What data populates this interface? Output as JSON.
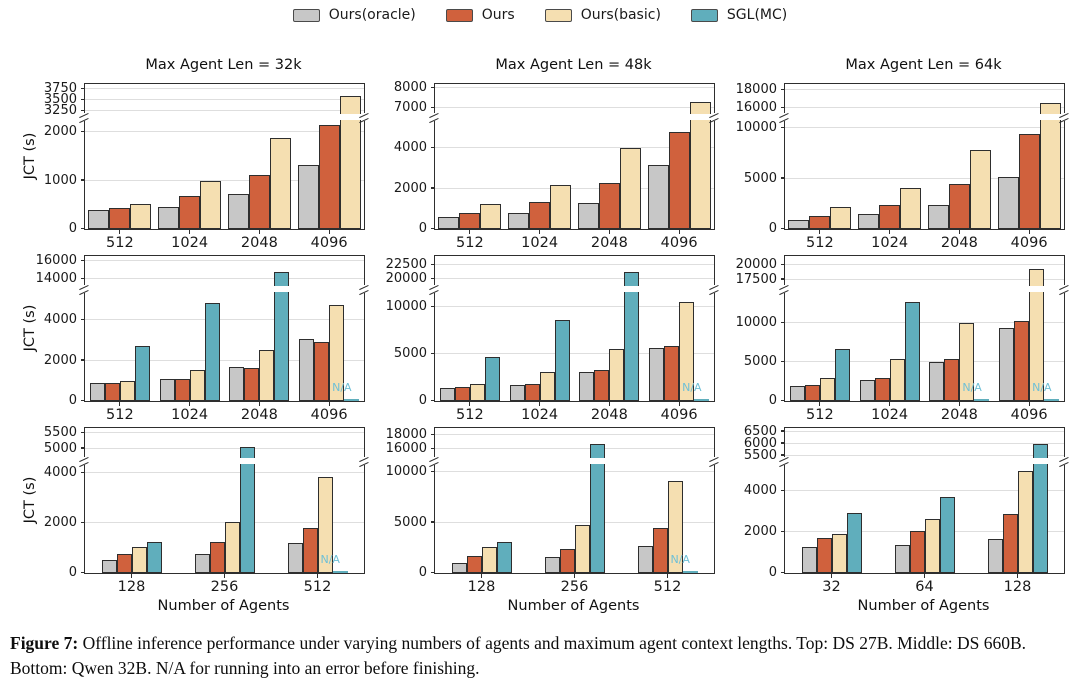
{
  "legend": {
    "items": [
      {
        "name": "Ours(oracle)",
        "color": "#c7c7c7"
      },
      {
        "name": "Ours",
        "color": "#d0613d"
      },
      {
        "name": "Ours(basic)",
        "color": "#f5dfb1"
      },
      {
        "name": "SGL(MC)",
        "color": "#60aebc"
      }
    ]
  },
  "axis": {
    "ylabel": "JCT (s)",
    "xlabel": "Number of Agents"
  },
  "na_label": "N/A",
  "colors": {
    "edge": "#2e2e2e",
    "grid": "#dedede",
    "na_text": "#6fc0d6"
  },
  "caption": {
    "label": "Figure 7:",
    "text": " Offline inference performance under varying numbers of agents and maximum agent context lengths. Top: DS 27B. Middle: DS 660B. Bottom: Qwen 32B. N/A for running into an error before finishing."
  },
  "chart_data": [
    {
      "type": "bar",
      "row": 0,
      "col": 0,
      "title": "Max Agent Len = 32k",
      "categories": [
        "512",
        "1024",
        "2048",
        "4096"
      ],
      "series": [
        {
          "name": "Ours(oracle)",
          "values": [
            390,
            460,
            730,
            1320
          ]
        },
        {
          "name": "Ours",
          "values": [
            430,
            680,
            1120,
            2150
          ]
        },
        {
          "name": "Ours(basic)",
          "values": [
            520,
            1000,
            1880,
            3600
          ]
        }
      ],
      "lower_ticks": [
        0,
        1000,
        2000
      ],
      "lower_max": 2250,
      "upper_ticks": [
        3250,
        3500,
        3750
      ],
      "upper_range": [
        3175,
        3875
      ]
    },
    {
      "type": "bar",
      "row": 0,
      "col": 1,
      "title": "Max Agent Len = 48k",
      "categories": [
        "512",
        "1024",
        "2048",
        "4096"
      ],
      "series": [
        {
          "name": "Ours(oracle)",
          "values": [
            620,
            780,
            1270,
            3170
          ]
        },
        {
          "name": "Ours",
          "values": [
            780,
            1350,
            2280,
            4830
          ]
        },
        {
          "name": "Ours(basic)",
          "values": [
            1230,
            2180,
            4030,
            7300
          ]
        }
      ],
      "lower_ticks": [
        0,
        2000,
        4000
      ],
      "lower_max": 5400,
      "upper_ticks": [
        7000,
        8000
      ],
      "upper_range": [
        6700,
        8200
      ]
    },
    {
      "type": "bar",
      "row": 0,
      "col": 2,
      "title": "Max Agent Len = 64k",
      "categories": [
        "512",
        "1024",
        "2048",
        "4096"
      ],
      "series": [
        {
          "name": "Ours(oracle)",
          "values": [
            900,
            1500,
            2400,
            5200
          ]
        },
        {
          "name": "Ours",
          "values": [
            1300,
            2400,
            4500,
            9400
          ]
        },
        {
          "name": "Ours(basic)",
          "values": [
            2200,
            4100,
            7800,
            16500
          ]
        }
      ],
      "lower_ticks": [
        0,
        5000,
        10000
      ],
      "lower_max": 10800,
      "upper_ticks": [
        16000,
        18000
      ],
      "upper_range": [
        15300,
        18700
      ]
    },
    {
      "type": "bar",
      "row": 1,
      "col": 0,
      "title": "",
      "categories": [
        "512",
        "1024",
        "2048",
        "4096"
      ],
      "series": [
        {
          "name": "Ours(oracle)",
          "values": [
            880,
            1100,
            1700,
            3050
          ]
        },
        {
          "name": "Ours",
          "values": [
            870,
            1080,
            1650,
            2900
          ]
        },
        {
          "name": "Ours(basic)",
          "values": [
            980,
            1520,
            2550,
            4750
          ]
        },
        {
          "name": "SGL(MC)",
          "values": [
            2750,
            4850,
            14800,
            "N/A"
          ]
        }
      ],
      "lower_ticks": [
        0,
        2000,
        4000
      ],
      "lower_max": 5400,
      "upper_ticks": [
        14000,
        16000
      ],
      "upper_range": [
        13300,
        16500
      ]
    },
    {
      "type": "bar",
      "row": 1,
      "col": 1,
      "title": "",
      "categories": [
        "512",
        "1024",
        "2048",
        "4096"
      ],
      "series": [
        {
          "name": "Ours(oracle)",
          "values": [
            1400,
            1750,
            3100,
            5600
          ]
        },
        {
          "name": "Ours",
          "values": [
            1450,
            1850,
            3250,
            5900
          ]
        },
        {
          "name": "Ours(basic)",
          "values": [
            1800,
            3100,
            5500,
            10500
          ]
        },
        {
          "name": "SGL(MC)",
          "values": [
            4700,
            8600,
            21300,
            "N/A"
          ]
        }
      ],
      "lower_ticks": [
        0,
        5000,
        10000
      ],
      "lower_max": 11600,
      "upper_ticks": [
        20000,
        22500
      ],
      "upper_range": [
        18800,
        24200
      ]
    },
    {
      "type": "bar",
      "row": 1,
      "col": 2,
      "title": "",
      "categories": [
        "512",
        "1024",
        "2048",
        "4096"
      ],
      "series": [
        {
          "name": "Ours(oracle)",
          "values": [
            1900,
            2650,
            4950,
            9400
          ]
        },
        {
          "name": "Ours",
          "values": [
            2050,
            2950,
            5400,
            10300
          ]
        },
        {
          "name": "Ours(basic)",
          "values": [
            2900,
            5350,
            10050,
            19300
          ]
        },
        {
          "name": "SGL(MC)",
          "values": [
            6700,
            12700,
            "N/A",
            "N/A"
          ]
        }
      ],
      "lower_ticks": [
        0,
        5000,
        10000
      ],
      "lower_max": 14000,
      "upper_ticks": [
        17500,
        20000
      ],
      "upper_range": [
        16400,
        21500
      ]
    },
    {
      "type": "bar",
      "row": 2,
      "col": 0,
      "title": "",
      "categories": [
        "128",
        "256",
        "512"
      ],
      "series": [
        {
          "name": "Ours(oracle)",
          "values": [
            520,
            760,
            1180
          ]
        },
        {
          "name": "Ours",
          "values": [
            740,
            1230,
            1800
          ]
        },
        {
          "name": "Ours(basic)",
          "values": [
            1020,
            2030,
            3820
          ]
        },
        {
          "name": "SGL(MC)",
          "values": [
            1230,
            5050,
            "N/A"
          ]
        }
      ],
      "lower_ticks": [
        0,
        2000,
        4000
      ],
      "lower_max": 4350,
      "upper_ticks": [
        5000,
        5500
      ],
      "upper_range": [
        4700,
        5650
      ]
    },
    {
      "type": "bar",
      "row": 2,
      "col": 1,
      "title": "",
      "categories": [
        "128",
        "256",
        "512"
      ],
      "series": [
        {
          "name": "Ours(oracle)",
          "values": [
            1000,
            1550,
            2650
          ]
        },
        {
          "name": "Ours",
          "values": [
            1650,
            2400,
            4500
          ]
        },
        {
          "name": "Ours(basic)",
          "values": [
            2550,
            4800,
            9100
          ]
        },
        {
          "name": "SGL(MC)",
          "values": [
            3050,
            16800,
            "N/A"
          ]
        }
      ],
      "lower_ticks": [
        0,
        5000,
        10000
      ],
      "lower_max": 10800,
      "upper_ticks": [
        16000,
        18000
      ],
      "upper_range": [
        14800,
        19000
      ]
    },
    {
      "type": "bar",
      "row": 2,
      "col": 2,
      "title": "",
      "categories": [
        "32",
        "64",
        "128"
      ],
      "series": [
        {
          "name": "Ours(oracle)",
          "values": [
            1250,
            1350,
            1650
          ]
        },
        {
          "name": "Ours",
          "values": [
            1700,
            2050,
            2850
          ]
        },
        {
          "name": "Ours(basic)",
          "values": [
            1900,
            2650,
            4950
          ]
        },
        {
          "name": "SGL(MC)",
          "values": [
            2900,
            3700,
            6000
          ]
        }
      ],
      "lower_ticks": [
        0,
        2000,
        4000
      ],
      "lower_max": 5300,
      "upper_ticks": [
        5500,
        6000,
        6500
      ],
      "upper_range": [
        5400,
        6650
      ]
    }
  ]
}
